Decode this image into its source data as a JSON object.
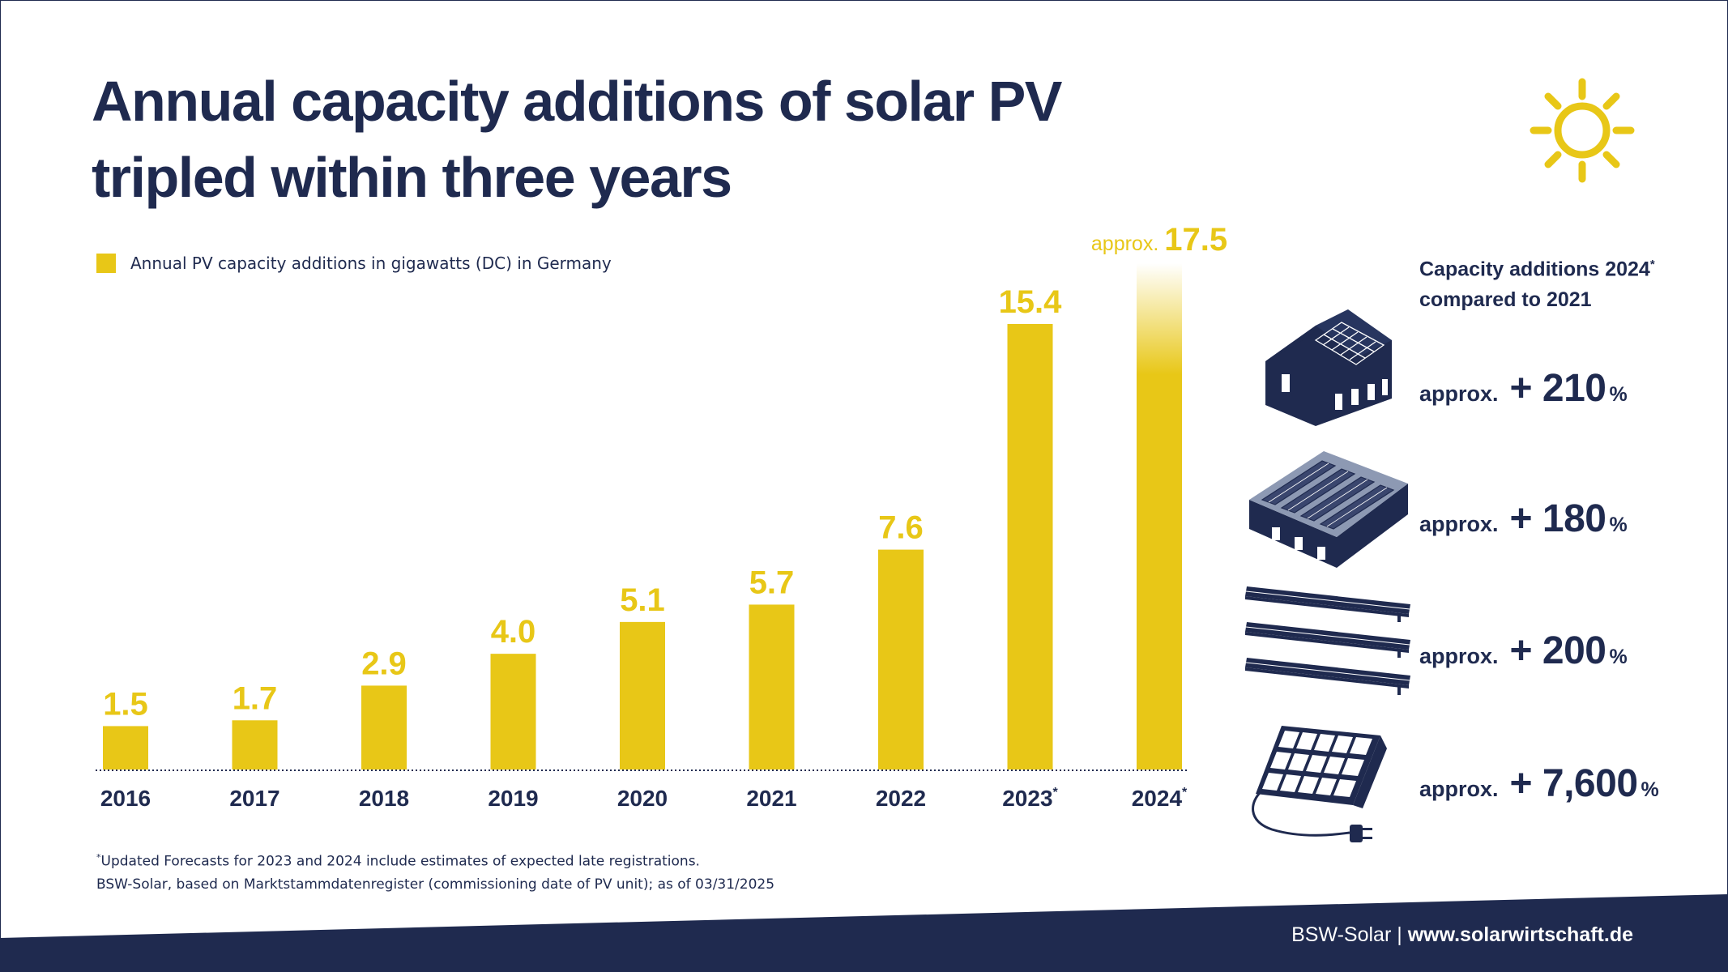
{
  "title_line1": "Annual capacity additions of solar PV",
  "title_line2": "tripled within three years",
  "legend_label": "Annual PV capacity additions in gigawatts (DC) in Germany",
  "colors": {
    "bar": "#e8c717",
    "navy": "#1f2a4f",
    "background": "#ffffff"
  },
  "chart_data": {
    "type": "bar",
    "title": "Annual capacity additions of solar PV tripled within three years",
    "series": [
      {
        "name": "Annual PV capacity additions in gigawatts (DC) in Germany",
        "values": [
          1.5,
          1.7,
          2.9,
          4.0,
          5.1,
          5.7,
          7.6,
          15.4,
          17.5
        ]
      }
    ],
    "categories": [
      "2016",
      "2017",
      "2018",
      "2019",
      "2020",
      "2021",
      "2022",
      "2023",
      "2024"
    ],
    "category_marks": [
      "",
      "",
      "",
      "",
      "",
      "",
      "",
      "*",
      "*"
    ],
    "data_labels": [
      "1.5",
      "1.7",
      "2.9",
      "4.0",
      "5.1",
      "5.7",
      "7.6",
      "15.4",
      "17.5"
    ],
    "data_label_prefixes": [
      "",
      "",
      "",
      "",
      "",
      "",
      "",
      "",
      "approx."
    ],
    "unit": "GW",
    "ylim": [
      0,
      17.5
    ],
    "grid": false,
    "legend_position": "top-left",
    "baseline_style": "dotted",
    "last_bar_gradient": true
  },
  "footnote_line1": "Updated Forecasts for 2023 and 2024 include estimates of expected late registrations.",
  "footnote_mark": "*",
  "footnote_line2": "BSW-Solar, based on Marktstammdatenregister (commissioning date of PV unit); as of 03/31/2025",
  "sidebar": {
    "heading_line1": "Capacity additions 2024",
    "heading_mark": "*",
    "heading_line2": "compared to 2021",
    "items": [
      {
        "icon": "house-rooftop-solar-icon",
        "prefix": "approx.",
        "value": "+ 210",
        "unit": "%"
      },
      {
        "icon": "commercial-rooftop-solar-icon",
        "prefix": "approx.",
        "value": "+ 180",
        "unit": "%"
      },
      {
        "icon": "ground-mounted-solar-icon",
        "prefix": "approx.",
        "value": "+ 200",
        "unit": "%"
      },
      {
        "icon": "balcony-plug-in-solar-icon",
        "prefix": "approx.",
        "value": "+ 7,600",
        "unit": "%"
      }
    ]
  },
  "footer": {
    "org": "BSW-Solar",
    "separator": "|",
    "url": "www.solarwirtschaft.de"
  }
}
